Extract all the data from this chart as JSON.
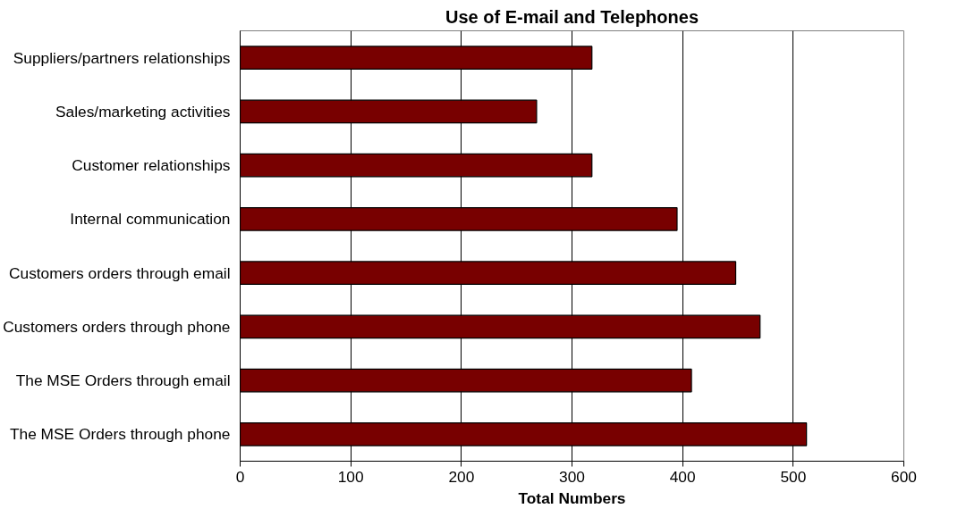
{
  "chart_data": {
    "type": "bar",
    "orientation": "horizontal",
    "title": "Use of E-mail and Telephones",
    "xlabel": "Total Numbers",
    "categories": [
      "Suppliers/partners relationships",
      "Sales/marketing activities",
      "Customer relationships",
      "Internal communication",
      "Customers orders through email",
      "Customers orders through phone",
      "The MSE Orders through email",
      "The MSE Orders through phone"
    ],
    "values": [
      318,
      268,
      318,
      395,
      448,
      470,
      408,
      512
    ],
    "color": "#780000",
    "xlim": [
      0,
      600
    ],
    "xticks": [
      0,
      100,
      200,
      300,
      400,
      500,
      600
    ],
    "grid": "x"
  }
}
